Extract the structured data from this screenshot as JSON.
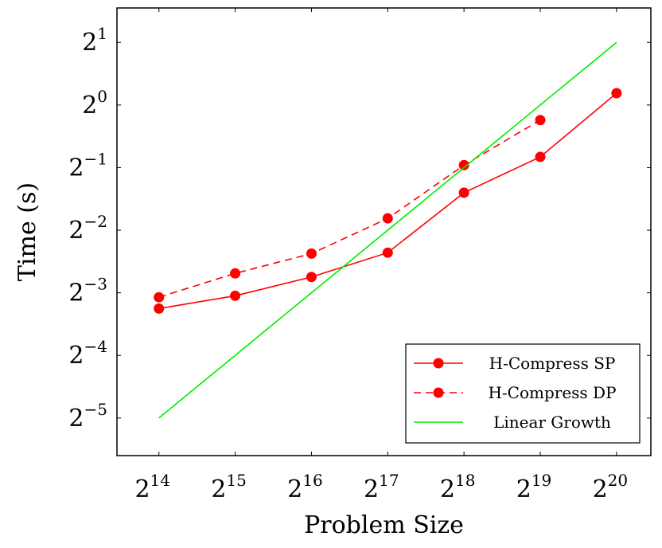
{
  "chart_data": {
    "type": "line",
    "title": "",
    "xlabel": "Problem Size",
    "ylabel": "Time (s)",
    "x_scale": "log2",
    "y_scale": "log2",
    "xlim_exp": [
      13.45,
      20.45
    ],
    "ylim_exp": [
      -5.6,
      1.55
    ],
    "x_ticks": [
      {
        "base": "2",
        "exp": "14",
        "value": 14
      },
      {
        "base": "2",
        "exp": "15",
        "value": 15
      },
      {
        "base": "2",
        "exp": "16",
        "value": 16
      },
      {
        "base": "2",
        "exp": "17",
        "value": 17
      },
      {
        "base": "2",
        "exp": "18",
        "value": 18
      },
      {
        "base": "2",
        "exp": "19",
        "value": 19
      },
      {
        "base": "2",
        "exp": "20",
        "value": 20
      }
    ],
    "y_ticks": [
      {
        "base": "2",
        "exp": "1",
        "value": 1
      },
      {
        "base": "2",
        "exp": "0",
        "value": 0
      },
      {
        "base": "2",
        "exp": "−1",
        "value": -1
      },
      {
        "base": "2",
        "exp": "−2",
        "value": -2
      },
      {
        "base": "2",
        "exp": "−3",
        "value": -3
      },
      {
        "base": "2",
        "exp": "−4",
        "value": -4
      },
      {
        "base": "2",
        "exp": "−5",
        "value": -5
      }
    ],
    "grid": false,
    "legend_position": "bottom-right",
    "series": [
      {
        "name": "H-Compress SP",
        "color": "#ff0000",
        "dash": "solid",
        "marker": "circle",
        "x": [
          16384,
          32768,
          65536,
          131072,
          262144,
          524288,
          1048576
        ],
        "y": [
          0.105,
          0.121,
          0.149,
          0.195,
          0.379,
          0.563,
          1.14
        ]
      },
      {
        "name": "H-Compress DP",
        "color": "#ff0000",
        "dash": "dashed",
        "marker": "circle",
        "x": [
          16384,
          32768,
          65536,
          131072,
          262144,
          524288
        ],
        "y": [
          0.119,
          0.155,
          0.193,
          0.285,
          0.514,
          0.846
        ]
      },
      {
        "name": "Linear Growth",
        "color": "#00ee00",
        "dash": "solid",
        "marker": "none",
        "x": [
          16384,
          1048576
        ],
        "y": [
          0.03125,
          2.0
        ]
      }
    ]
  }
}
